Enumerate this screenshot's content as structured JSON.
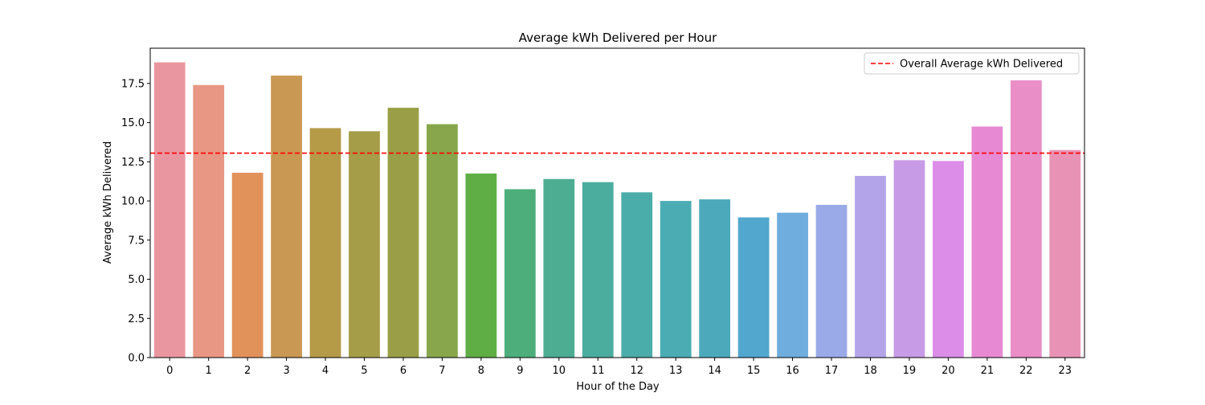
{
  "chart_data": {
    "type": "bar",
    "title": "Average kWh Delivered per Hour",
    "xlabel": "Hour of the Day",
    "ylabel": "Average kWh Delivered",
    "ylim": [
      0,
      19.75
    ],
    "yticks": [
      0.0,
      2.5,
      5.0,
      7.5,
      10.0,
      12.5,
      15.0,
      17.5
    ],
    "ytick_labels": [
      "0.0",
      "2.5",
      "5.0",
      "7.5",
      "10.0",
      "12.5",
      "15.0",
      "17.5"
    ],
    "categories": [
      "0",
      "1",
      "2",
      "3",
      "4",
      "5",
      "6",
      "7",
      "8",
      "9",
      "10",
      "11",
      "12",
      "13",
      "14",
      "15",
      "16",
      "17",
      "18",
      "19",
      "20",
      "21",
      "22",
      "23"
    ],
    "values": [
      18.85,
      17.4,
      11.8,
      18.0,
      14.65,
      14.45,
      15.95,
      14.9,
      11.75,
      10.75,
      11.4,
      11.2,
      10.55,
      10.0,
      10.1,
      8.95,
      9.25,
      9.75,
      11.6,
      12.6,
      12.55,
      14.75,
      17.7,
      13.25
    ],
    "bar_colors": [
      "#ea96a1",
      "#e89784",
      "#e1925b",
      "#c99852",
      "#b59a48",
      "#a59d48",
      "#9a9f47",
      "#88a64b",
      "#5fae45",
      "#4dae7b",
      "#4dad93",
      "#4bad9d",
      "#4badaa",
      "#4bacb4",
      "#4ba9bb",
      "#51a7ce",
      "#6eadde",
      "#9aa9e8",
      "#b3a4ea",
      "#c79be6",
      "#db8de8",
      "#e78ad3",
      "#e98ec6",
      "#e893b5"
    ],
    "reference_line": {
      "label": "Overall Average kWh Delivered",
      "value": 13.05,
      "color": "#ff0000",
      "style": "dashed"
    },
    "legend_position": "upper-right",
    "grid": false
  }
}
